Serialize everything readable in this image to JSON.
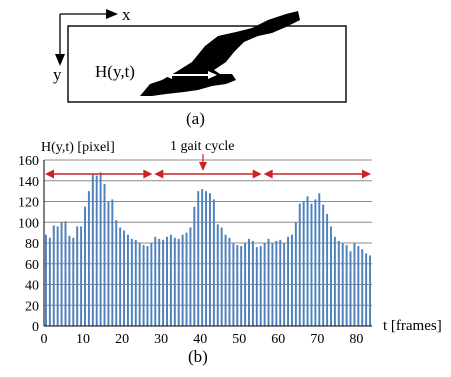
{
  "panel_a": {
    "axis_x_label": "x",
    "axis_y_label": "y",
    "measure_label": "H(y,t)",
    "caption": "(a)"
  },
  "panel_b": {
    "caption": "(b)",
    "annotation": "1 gait cycle"
  },
  "chart_data": {
    "type": "bar",
    "ylabel": "H(y,t) [pixel]",
    "xlabel": "t [frames]",
    "xlim": [
      0,
      84
    ],
    "ylim": [
      0,
      160
    ],
    "x_ticks": [
      0,
      10,
      20,
      30,
      40,
      50,
      60,
      70,
      80
    ],
    "y_ticks": [
      0,
      20,
      40,
      60,
      80,
      100,
      120,
      140,
      160
    ],
    "grid": true,
    "gait_cycle_boundaries": [
      0,
      28,
      56,
      84
    ],
    "values": [
      88,
      85,
      97,
      96,
      100,
      101,
      87,
      85,
      96,
      96,
      115,
      130,
      147,
      145,
      148,
      137,
      120,
      122,
      102,
      95,
      92,
      88,
      84,
      83,
      80,
      78,
      77,
      80,
      86,
      84,
      83,
      86,
      88,
      85,
      84,
      88,
      90,
      95,
      115,
      130,
      132,
      130,
      128,
      122,
      98,
      95,
      88,
      85,
      80,
      78,
      77,
      80,
      84,
      82,
      76,
      77,
      80,
      84,
      80,
      82,
      83,
      80,
      86,
      88,
      100,
      118,
      120,
      125,
      118,
      122,
      128,
      117,
      108,
      96,
      86,
      82,
      80,
      78,
      72,
      80,
      77,
      74,
      70,
      68
    ]
  }
}
